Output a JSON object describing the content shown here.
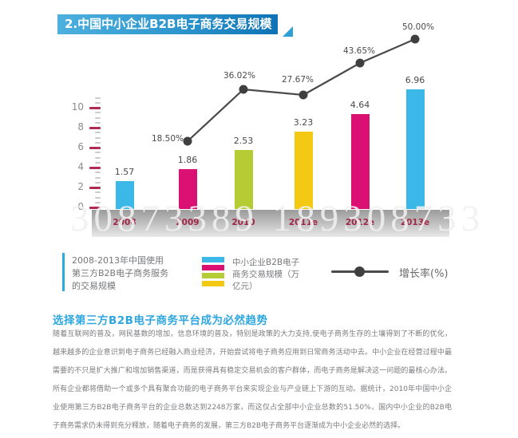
{
  "header": {
    "title": "2.中国中小企业B2B电子商务交易规模",
    "bar_gradient": [
      "#4db0de",
      "#0e73b5"
    ]
  },
  "watermark": "30873389 189308733",
  "chart_data": {
    "type": "bar+line combo",
    "title": "中国中小企业B2B电子商务交易规模",
    "categories": [
      "2008",
      "2009",
      "2010",
      "2011e",
      "2012e",
      "2013e"
    ],
    "series": [
      {
        "name": "中小企业B2B电子商务交易规模（万亿元）",
        "type": "bar",
        "values": [
          1.57,
          1.86,
          2.53,
          3.23,
          4.64,
          6.96
        ],
        "value_labels": [
          "1.57",
          "1.86",
          "2.53",
          "3.23",
          "4.64",
          "6.96"
        ],
        "colors": [
          "#3bb7e8",
          "#da1173",
          "#b5cc34",
          "#f3c913",
          "#da1173",
          "#3bb7e8"
        ]
      },
      {
        "name": "增长率(%)",
        "type": "line",
        "values": [
          null,
          18.5,
          36.02,
          27.67,
          43.65,
          50.0
        ],
        "point_labels": [
          "",
          "18.50%",
          "36.02%",
          "27.67%",
          "43.65%",
          "50.00%"
        ],
        "color": "#4a4a4a"
      }
    ],
    "yaxis": {
      "tick_labels": [
        "10",
        "8",
        "6",
        "4",
        "2",
        "0"
      ],
      "ylim": [
        0,
        10
      ],
      "major_tick_color": "#ae2c52",
      "minor_tick_color": "#cbcbcb"
    },
    "xaxis": {
      "band_colors": [
        "#9b9b9b",
        "#e9e9e9"
      ],
      "label_color": "#9f2646"
    },
    "grid": "off",
    "legend_position": "bottom"
  },
  "legend": {
    "caption_lines": [
      "2008-2013年中国使用",
      "第三方B2B电子商务服务",
      "的交易规模"
    ],
    "caption_accent_color": "#2baae2",
    "bar_series_lines": [
      "中小企业B2B电子",
      "商务交易规模（万",
      "亿元）"
    ],
    "swatch_colors": [
      "#3bb7e8",
      "#da1173",
      "#b5cc34",
      "#f3c913"
    ],
    "line_series_label": "增长率(%)"
  },
  "article": {
    "heading": "选择第三方B2B电子商务平台成为必然趋势",
    "lines": [
      "随着互联网的普及，网民基数的增加，信息环境的普及，特别是政策的大力支持,使电子商务生存的土壤得到了不断的优化，",
      "越来越多的企业意识到电子商务已经融入商业经济，开始尝试将电子商务应用到日常商务活动中去。中小企业在经营过程中最",
      "需要的不只是扩大推广和增加销售渠道，而是获得具有稳定交易机会的客户群体，而电子商务是解决这一问题的最核心办法。",
      "所有企业都将借助一个或多个具有聚合功能的电子商务平台来实现企业与产业链上下游的互动。据统计，2010年中国中小企",
      "业使用第三方B2B电子商务平台的企业总数达到2248万家，而这仅占全部中小企业总数的51.50%，国内中小企业的B2B电",
      "子商务需求仍未得到充分释放，随着电子商务的发展，第三方B2B电子商务平台逐渐成为中小企业必然的选择。"
    ]
  }
}
